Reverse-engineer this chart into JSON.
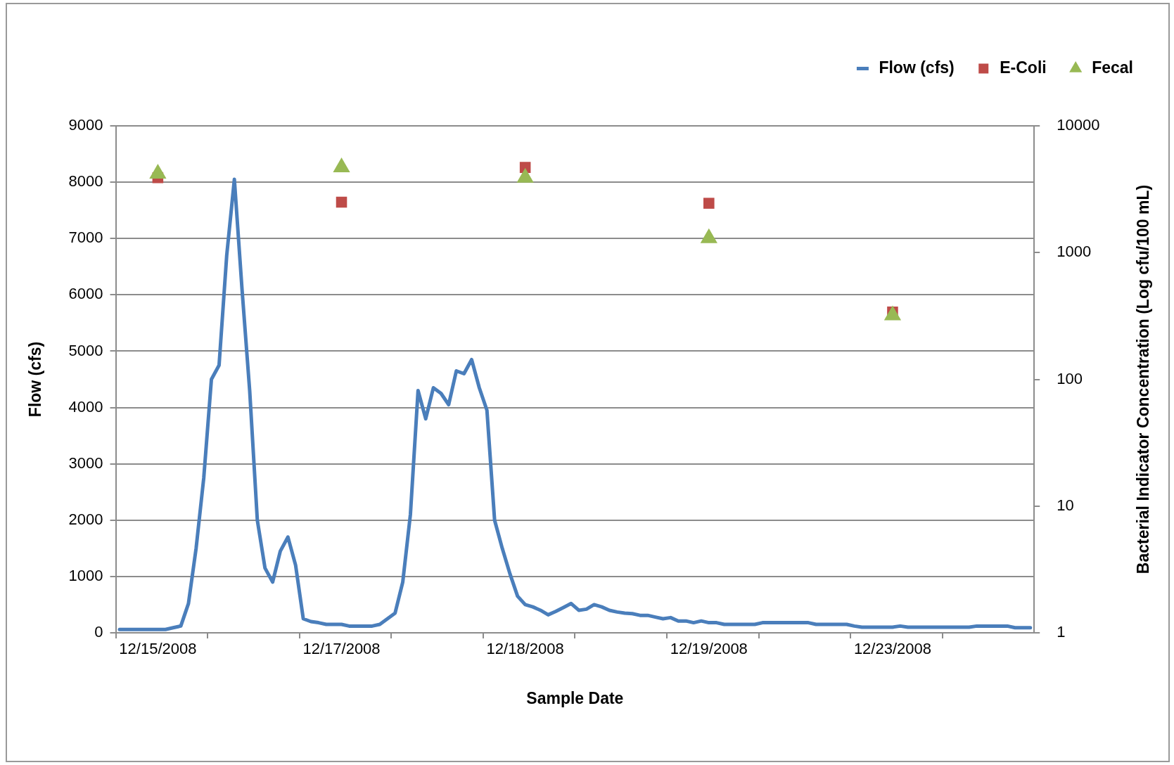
{
  "chart_data": {
    "type": "line",
    "xlabel": "Sample Date",
    "ylabel": "Flow (cfs)",
    "y2label": "Bacterial Indicator Concentration (Log cfu/100 mL)",
    "categories": [
      null,
      null,
      null,
      null,
      null,
      "12/15/2008",
      null,
      null,
      null,
      null,
      null,
      null,
      null,
      null,
      null,
      null,
      null,
      null,
      null,
      null,
      null,
      null,
      null,
      null,
      null,
      null,
      null,
      null,
      null,
      "12/17/2008",
      null,
      null,
      null,
      null,
      null,
      null,
      null,
      null,
      null,
      null,
      null,
      null,
      null,
      null,
      null,
      null,
      null,
      null,
      null,
      null,
      null,
      null,
      null,
      "12/18/2008",
      null,
      null,
      null,
      null,
      null,
      null,
      null,
      null,
      null,
      null,
      null,
      null,
      null,
      null,
      null,
      null,
      null,
      null,
      null,
      null,
      null,
      null,
      null,
      "12/19/2008",
      null,
      null,
      null,
      null,
      null,
      null,
      null,
      null,
      null,
      null,
      null,
      null,
      null,
      null,
      null,
      null,
      null,
      null,
      null,
      null,
      null,
      null,
      null,
      "12/23/2008",
      null,
      null,
      null,
      null,
      null,
      null,
      null,
      null,
      null,
      null,
      null,
      null,
      null,
      null,
      null,
      null,
      null,
      null
    ],
    "series": [
      {
        "name": "Flow (cfs)",
        "type": "line",
        "color": "#4a7ebb",
        "marker": "none",
        "values": [
          60,
          60,
          60,
          60,
          60,
          60,
          60,
          90,
          120,
          520,
          1500,
          2750,
          4500,
          4750,
          6700,
          8050,
          6100,
          4300,
          2000,
          1150,
          900,
          1450,
          1700,
          1200,
          250,
          200,
          180,
          150,
          150,
          150,
          120,
          120,
          120,
          120,
          150,
          250,
          350,
          900,
          2100,
          4300,
          3800,
          4350,
          4250,
          4050,
          4650,
          4600,
          4850,
          4350,
          3950,
          2000,
          1500,
          1050,
          650,
          500,
          460,
          400,
          320,
          380,
          450,
          520,
          400,
          420,
          500,
          460,
          400,
          370,
          350,
          340,
          310,
          310,
          280,
          250,
          270,
          210,
          210,
          180,
          210,
          180,
          180,
          150,
          150,
          150,
          150,
          150,
          180,
          180,
          180,
          180,
          180,
          180,
          180,
          150,
          150,
          150,
          150,
          150,
          120,
          100,
          100,
          100,
          100,
          100,
          120,
          100,
          100,
          100,
          100,
          100,
          100,
          100,
          100,
          100,
          120,
          120,
          120,
          120,
          120,
          90,
          90,
          90
        ]
      },
      {
        "name": "E-Coli",
        "type": "scatter",
        "axis": "y2",
        "color": "#be4b48",
        "marker": "square",
        "values": [
          null,
          null,
          null,
          null,
          null,
          3900,
          null,
          null,
          null,
          null,
          null,
          null,
          null,
          null,
          null,
          null,
          null,
          null,
          null,
          null,
          null,
          null,
          null,
          null,
          null,
          null,
          null,
          null,
          null,
          2500,
          null,
          null,
          null,
          null,
          null,
          null,
          null,
          null,
          null,
          null,
          null,
          null,
          null,
          null,
          null,
          null,
          null,
          null,
          null,
          null,
          null,
          null,
          null,
          4700,
          null,
          null,
          null,
          null,
          null,
          null,
          null,
          null,
          null,
          null,
          null,
          null,
          null,
          null,
          null,
          null,
          null,
          null,
          null,
          null,
          null,
          null,
          null,
          2450,
          null,
          null,
          null,
          null,
          null,
          null,
          null,
          null,
          null,
          null,
          null,
          null,
          null,
          null,
          null,
          null,
          null,
          null,
          null,
          null,
          null,
          null,
          null,
          340,
          null,
          null,
          null,
          null,
          null,
          null,
          null,
          null,
          null,
          null,
          null,
          null,
          null,
          null,
          null,
          null,
          null,
          null
        ]
      },
      {
        "name": "Fecal",
        "type": "scatter",
        "axis": "y2",
        "color": "#98b954",
        "marker": "triangle",
        "values": [
          null,
          null,
          null,
          null,
          null,
          4200,
          null,
          null,
          null,
          null,
          null,
          null,
          null,
          null,
          null,
          null,
          null,
          null,
          null,
          null,
          null,
          null,
          null,
          null,
          null,
          null,
          null,
          null,
          null,
          4700,
          null,
          null,
          null,
          null,
          null,
          null,
          null,
          null,
          null,
          null,
          null,
          null,
          null,
          null,
          null,
          null,
          null,
          null,
          null,
          null,
          null,
          null,
          null,
          3900,
          null,
          null,
          null,
          null,
          null,
          null,
          null,
          null,
          null,
          null,
          null,
          null,
          null,
          null,
          null,
          null,
          null,
          null,
          null,
          null,
          null,
          null,
          null,
          1300,
          null,
          null,
          null,
          null,
          null,
          null,
          null,
          null,
          null,
          null,
          null,
          null,
          null,
          null,
          null,
          null,
          null,
          null,
          null,
          null,
          null,
          null,
          null,
          320,
          null,
          null,
          null,
          null,
          null,
          null,
          null,
          null,
          null,
          null,
          null,
          null,
          null,
          null,
          null,
          null,
          null,
          null
        ]
      }
    ],
    "ylim": [
      0,
      9000
    ],
    "yticks": [
      0,
      1000,
      2000,
      3000,
      4000,
      5000,
      6000,
      7000,
      8000,
      9000
    ],
    "y2lim": [
      1,
      10000
    ],
    "y2ticks": [
      1,
      10,
      100,
      1000,
      10000
    ],
    "log": "y2",
    "grid": "y",
    "legend": "top right"
  }
}
